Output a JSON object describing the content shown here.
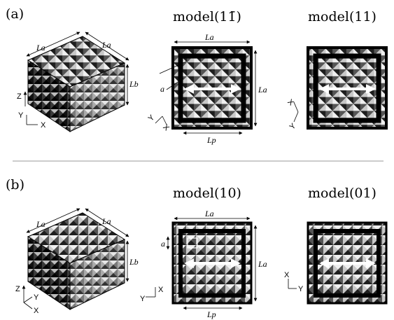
{
  "panels": [
    {
      "letter": "(a)",
      "cube": {
        "label_la_left": "La",
        "label_la_right": "La",
        "label_lb": "Lb",
        "axis_z": "Z",
        "axis_y": "Y",
        "axis_x": "X"
      },
      "views": [
        {
          "title": "model(11̄)",
          "label_top": "La",
          "label_side": "La",
          "label_bottom": "Lp",
          "label_a": "a",
          "axis_a": "X",
          "axis_b": "Y"
        },
        {
          "title": "model(11)",
          "axis_a": "X",
          "axis_b": "Y"
        }
      ]
    },
    {
      "letter": "(b)",
      "cube": {
        "label_la_left": "La",
        "label_la_right": "La",
        "label_lb": "Lb",
        "axis_z": "Z",
        "axis_y": "Y",
        "axis_x": "X"
      },
      "views": [
        {
          "title": "model(10)",
          "label_top": "La",
          "label_side": "La",
          "label_bottom": "Lp",
          "label_a": "a",
          "axis_a": "X",
          "axis_b": "Y"
        },
        {
          "title": "model(01)",
          "axis_a": "X",
          "axis_b": "Y"
        }
      ]
    }
  ],
  "colors": {
    "ink": "#000000",
    "light": "#d8d8d8",
    "mid": "#8c8c8c",
    "dark": "#1a1a1a",
    "separator": "#9a9a9a",
    "arrow": "#ffffff"
  }
}
